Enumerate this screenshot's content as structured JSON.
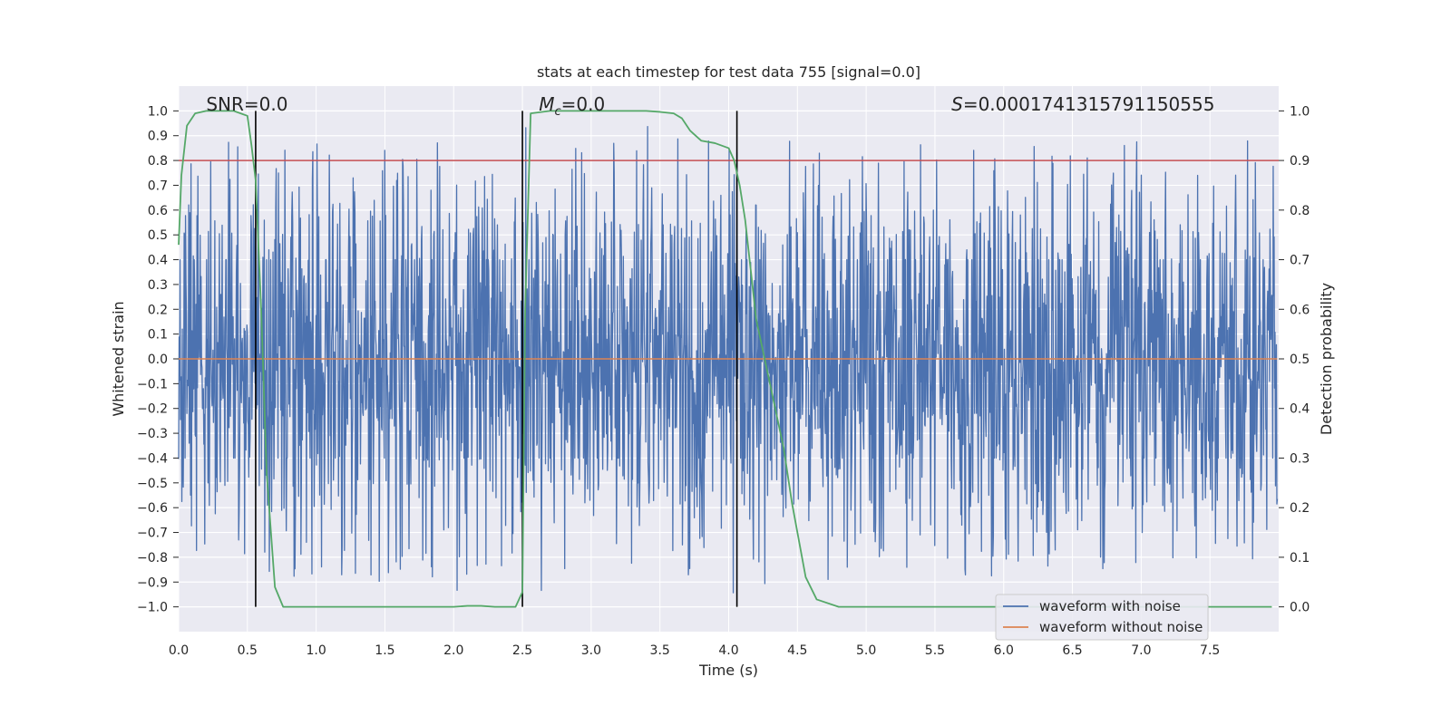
{
  "chart_data": {
    "type": "line",
    "title": "stats at each timestep for test data 755 [signal=0.0]",
    "xlabel": "Time (s)",
    "ylabel": "Whitened strain",
    "y2label": "Detection probability",
    "xlim": [
      0.0,
      8.0
    ],
    "ylim": [
      -1.1,
      1.1
    ],
    "y2lim": [
      -0.05,
      1.05
    ],
    "xticks": [
      0.0,
      0.5,
      1.0,
      1.5,
      2.0,
      2.5,
      3.0,
      3.5,
      4.0,
      4.5,
      5.0,
      5.5,
      6.0,
      6.5,
      7.0,
      7.5
    ],
    "xtick_labels": [
      "0.0",
      "0.5",
      "1.0",
      "1.5",
      "2.0",
      "2.5",
      "3.0",
      "3.5",
      "4.0",
      "4.5",
      "5.0",
      "5.5",
      "6.0",
      "6.5",
      "7.0",
      "7.5"
    ],
    "yticks": [
      1.0,
      0.9,
      0.8,
      0.7,
      0.6,
      0.5,
      0.4,
      0.3,
      0.2,
      0.1,
      0.0,
      -0.1,
      -0.2,
      -0.3,
      -0.4,
      -0.5,
      -0.6,
      -0.7,
      -0.8,
      -0.9,
      -1.0
    ],
    "ytick_labels": [
      "1.0",
      "0.9",
      "0.8",
      "0.7",
      "0.6",
      "0.5",
      "0.4",
      "0.3",
      "0.2",
      "0.1",
      "0.0",
      "−0.1",
      "−0.2",
      "−0.3",
      "−0.4",
      "−0.5",
      "−0.6",
      "−0.7",
      "−0.8",
      "−0.9",
      "−1.0"
    ],
    "y2ticks": [
      1.0,
      0.9,
      0.8,
      0.7,
      0.6,
      0.5,
      0.4,
      0.3,
      0.2,
      0.1,
      0.0
    ],
    "y2tick_labels": [
      "1.0",
      "0.9",
      "0.8",
      "0.7",
      "0.6",
      "0.5",
      "0.4",
      "0.3",
      "0.2",
      "0.1",
      "0.0"
    ],
    "annotations": {
      "snr": "SNR=0.0",
      "mc_symbol": "M",
      "mc_sub": "c",
      "mc_value": "=0.0",
      "s_symbol": "S",
      "s_value": "=0.0001741315791150555"
    },
    "legend": {
      "position": "lower-right",
      "entries": [
        "waveform with noise",
        "waveform without noise"
      ]
    },
    "threshold_y2": 0.9,
    "zero_line_y": 0.0,
    "vlines_x": [
      0.56,
      2.5,
      4.06
    ],
    "noise_waveform": {
      "x_start": 0.0,
      "x_end": 7.99,
      "n_samples": 2400,
      "core_amplitude": 0.4,
      "max_peak": 1.0,
      "min_trough": -1.0
    },
    "series": [
      {
        "name": "Detection probability",
        "axis": "y2",
        "x": [
          0.0,
          0.02,
          0.06,
          0.12,
          0.2,
          0.3,
          0.4,
          0.5,
          0.53,
          0.56,
          0.6,
          0.64,
          0.7,
          0.76,
          1.0,
          1.5,
          2.0,
          2.1,
          2.2,
          2.3,
          2.45,
          2.5,
          2.52,
          2.56,
          2.7,
          3.0,
          3.2,
          3.4,
          3.5,
          3.6,
          3.66,
          3.72,
          3.8,
          3.9,
          4.0,
          4.04,
          4.08,
          4.12,
          4.2,
          4.3,
          4.4,
          4.46,
          4.5,
          4.56,
          4.64,
          4.8,
          5.0,
          6.0,
          7.0,
          7.95
        ],
        "values": [
          0.73,
          0.87,
          0.97,
          0.995,
          1.0,
          1.0,
          1.0,
          0.99,
          0.93,
          0.86,
          0.6,
          0.27,
          0.04,
          0.0,
          0.0,
          0.0,
          0.0,
          0.002,
          0.002,
          0.0,
          0.0,
          0.03,
          0.6,
          0.995,
          1.0,
          1.0,
          1.0,
          1.0,
          0.998,
          0.995,
          0.985,
          0.96,
          0.94,
          0.935,
          0.925,
          0.9,
          0.85,
          0.78,
          0.58,
          0.45,
          0.32,
          0.21,
          0.15,
          0.06,
          0.015,
          0.0,
          0.0,
          0.0,
          0.0,
          0.0
        ]
      }
    ]
  },
  "colors": {
    "background": "#EAEAF2",
    "grid": "#FFFFFF",
    "noise": "#4C72B0",
    "clean": "#DD8452",
    "probability": "#55A868",
    "threshold": "#C44E52",
    "vline": "#000000",
    "legend_bg": "#EAEAF2",
    "legend_border": "#CCCCCC"
  }
}
